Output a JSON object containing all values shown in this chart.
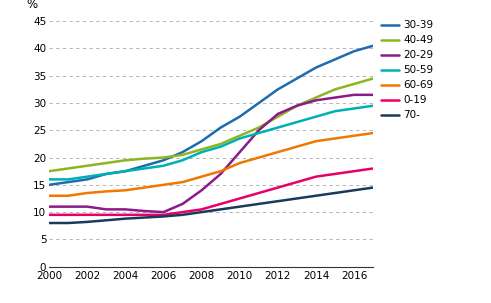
{
  "years": [
    2000,
    2001,
    2002,
    2003,
    2004,
    2005,
    2006,
    2007,
    2008,
    2009,
    2010,
    2011,
    2012,
    2013,
    2014,
    2015,
    2016,
    2017
  ],
  "series": {
    "30-39": [
      15.0,
      15.5,
      16.0,
      17.0,
      17.5,
      18.5,
      19.5,
      21.0,
      23.0,
      25.5,
      27.5,
      30.0,
      32.5,
      34.5,
      36.5,
      38.0,
      39.5,
      40.5
    ],
    "40-49": [
      17.5,
      18.0,
      18.5,
      19.0,
      19.5,
      19.8,
      20.0,
      20.5,
      21.5,
      22.5,
      24.0,
      25.5,
      27.5,
      29.5,
      31.0,
      32.5,
      33.5,
      34.5
    ],
    "20-29": [
      11.0,
      11.0,
      11.0,
      10.5,
      10.5,
      10.2,
      10.0,
      11.5,
      14.0,
      17.0,
      21.0,
      25.0,
      28.0,
      29.5,
      30.5,
      31.0,
      31.5,
      31.5
    ],
    "50-59": [
      16.0,
      16.0,
      16.5,
      17.0,
      17.5,
      18.0,
      18.5,
      19.5,
      21.0,
      22.0,
      23.5,
      24.5,
      25.5,
      26.5,
      27.5,
      28.5,
      29.0,
      29.5
    ],
    "60-69": [
      13.0,
      13.0,
      13.5,
      13.8,
      14.0,
      14.5,
      15.0,
      15.5,
      16.5,
      17.5,
      19.0,
      20.0,
      21.0,
      22.0,
      23.0,
      23.5,
      24.0,
      24.5
    ],
    "0-19": [
      9.5,
      9.5,
      9.5,
      9.5,
      9.5,
      9.5,
      9.5,
      10.0,
      10.5,
      11.5,
      12.5,
      13.5,
      14.5,
      15.5,
      16.5,
      17.0,
      17.5,
      18.0
    ],
    "70-": [
      8.0,
      8.0,
      8.2,
      8.5,
      8.8,
      9.0,
      9.2,
      9.5,
      10.0,
      10.5,
      11.0,
      11.5,
      12.0,
      12.5,
      13.0,
      13.5,
      14.0,
      14.5
    ]
  },
  "colors": {
    "30-39": "#1e6bb0",
    "40-49": "#8db521",
    "20-29": "#8b1a8b",
    "50-59": "#00b0b0",
    "60-69": "#f07800",
    "0-19": "#e8006a",
    "70-": "#1a3a5c"
  },
  "ylabel": "%",
  "ylim": [
    0,
    45
  ],
  "yticks": [
    0,
    5,
    10,
    15,
    20,
    25,
    30,
    35,
    40,
    45
  ],
  "xlim": [
    2000,
    2017
  ],
  "xticks": [
    2000,
    2002,
    2004,
    2006,
    2008,
    2010,
    2012,
    2014,
    2016
  ],
  "legend_order": [
    "30-39",
    "40-49",
    "20-29",
    "50-59",
    "60-69",
    "0-19",
    "70-"
  ],
  "background_color": "#ffffff",
  "grid_color": "#aaaaaa",
  "line_width": 1.8
}
